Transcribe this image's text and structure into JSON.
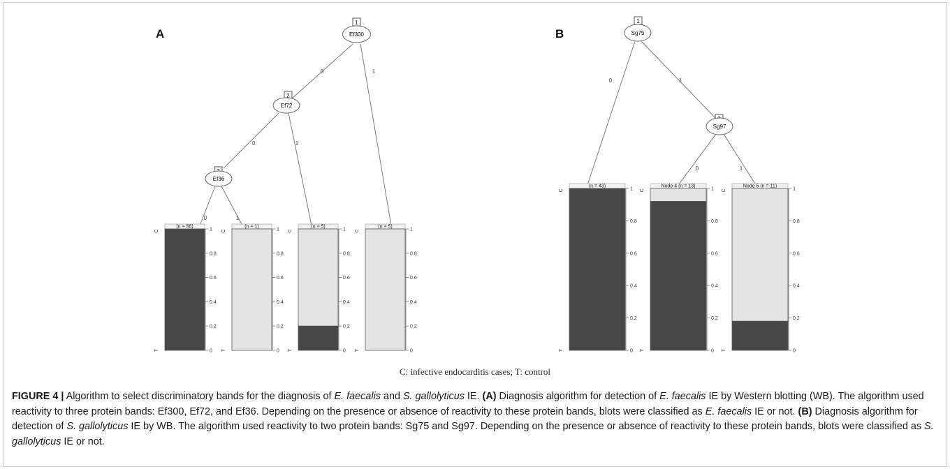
{
  "panels": [
    {
      "label": "A",
      "nodes": [
        {
          "id": "1",
          "name": "Ef300"
        },
        {
          "id": "2",
          "name": "Ef72"
        },
        {
          "id": "3",
          "name": "Ef36"
        }
      ],
      "edge_labels": {
        "n1_left": "0",
        "n1_right": "1",
        "n2_left": "0",
        "n2_right": "1",
        "n3_left": "0",
        "n3_right": "1"
      },
      "leaves": [
        {
          "title": "(n = 56)",
          "fraction_C": 1.0
        },
        {
          "title": "(n = 1)",
          "fraction_C": 0.0
        },
        {
          "title": "(n = 5)",
          "fraction_C": 0.2
        },
        {
          "title": "(n = 5)",
          "fraction_C": 0.0
        }
      ]
    },
    {
      "label": "B",
      "nodes": [
        {
          "id": "1",
          "name": "Sg75"
        },
        {
          "id": "3",
          "name": "Sg97"
        }
      ],
      "edge_labels": {
        "n1_left": "0",
        "n1_right": "1",
        "n3_left": "0",
        "n3_right": "1"
      },
      "leaves": [
        {
          "title": "(n = 43)",
          "fraction_C": 1.0
        },
        {
          "title": "Node 4 (n = 13)",
          "fraction_C": 0.92
        },
        {
          "title": "Node 5 (n = 11)",
          "fraction_C": 0.18
        }
      ]
    }
  ],
  "axis": {
    "ticks": [
      "0",
      "0.2",
      "0.4",
      "0.6",
      "0.8",
      "1"
    ],
    "class_top": "C",
    "class_bottom": "T"
  },
  "colors": {
    "case": "#474747",
    "control": "#e4e4e4",
    "stroke": "#555555"
  },
  "legend_note": "C: infective  endocarditis cases; T: control",
  "caption": {
    "label": "FIGURE 4 |",
    "t1": " Algorithm to select discriminatory bands for the diagnosis of ",
    "sp1": "E. faecalis",
    "t2": " and ",
    "sp2": "S. gallolyticus",
    "t3": " IE. ",
    "a": "(A)",
    "t4": " Diagnosis algorithm for detection of ",
    "sp3": "E. faecalis",
    "t5": " IE by Western blotting (WB). The algorithm used reactivity to three protein bands: Ef300, Ef72, and Ef36. Depending on the presence or absence of reactivity to these protein bands, blots were classified as ",
    "sp4": "E. faecalis",
    "t6": " IE or not. ",
    "b": "(B)",
    "t7": " Diagnosis algorithm for detection of ",
    "sp5": "S. gallolyticus",
    "t8": " IE by WB. The algorithm used reactivity to two protein bands: Sg75 and Sg97. Depending on the presence or absence of reactivity to these protein bands, blots were classified as ",
    "sp6": "S. gallolyticus",
    "t9": " IE or not."
  }
}
